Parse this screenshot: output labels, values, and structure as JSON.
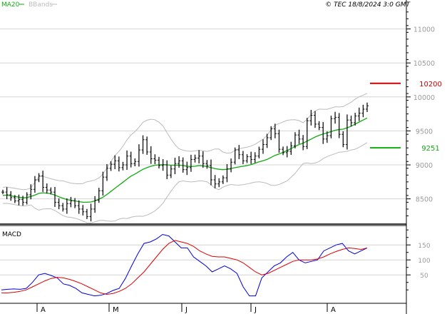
{
  "legend": {
    "ma_label": "MA20",
    "bb_label": "BBands",
    "ma_color": "#11aa11",
    "bb_color": "#bbbbbb"
  },
  "timestamp": "© TEC 18/8/2024 3:0 GMT",
  "colors": {
    "price": "#111111",
    "grid": "#d4d4d4",
    "resistance": "#cc0000",
    "support": "#11aa11",
    "macd": "#0000dd",
    "signal": "#dd0000"
  },
  "chart_data": [
    {
      "type": "ohlc",
      "title": "",
      "ylim": [
        8150,
        11300
      ],
      "y_ticks": [
        {
          "value": 8500,
          "label": "8500"
        },
        {
          "value": 9000,
          "label": "9000"
        },
        {
          "value": 9500,
          "label": "9500"
        },
        {
          "value": 10000,
          "label": "10000"
        },
        {
          "value": 10500,
          "label": "10500"
        },
        {
          "value": 11000,
          "label": "11000"
        }
      ],
      "closes": [
        8600,
        8560,
        8520,
        8470,
        8490,
        8450,
        8560,
        8640,
        8780,
        8840,
        8670,
        8630,
        8600,
        8450,
        8400,
        8350,
        8430,
        8470,
        8400,
        8350,
        8310,
        8240,
        8350,
        8480,
        8620,
        8820,
        8950,
        9010,
        9060,
        8960,
        9000,
        9130,
        9020,
        9050,
        9220,
        9370,
        9190,
        9090,
        9070,
        8990,
        9000,
        8850,
        8940,
        9020,
        9060,
        8930,
        8960,
        9080,
        9100,
        9130,
        9020,
        8990,
        8780,
        8720,
        8750,
        8810,
        8940,
        9040,
        9220,
        9150,
        9060,
        9120,
        9080,
        9130,
        9230,
        9300,
        9400,
        9530,
        9460,
        9230,
        9180,
        9200,
        9280,
        9440,
        9380,
        9270,
        9650,
        9730,
        9600,
        9550,
        9380,
        9430,
        9680,
        9700,
        9450,
        9300,
        9660,
        9620,
        9720,
        9760,
        9820,
        9870
      ],
      "ma20": [
        8550,
        8555,
        8545,
        8535,
        8525,
        8515,
        8520,
        8535,
        8555,
        8580,
        8590,
        8585,
        8575,
        8555,
        8530,
        8510,
        8490,
        8480,
        8470,
        8460,
        8450,
        8450,
        8455,
        8470,
        8495,
        8525,
        8565,
        8610,
        8655,
        8700,
        8745,
        8790,
        8835,
        8865,
        8900,
        8935,
        8960,
        8980,
        8995,
        9000,
        9005,
        9000,
        8995,
        8995,
        8995,
        8990,
        8980,
        8975,
        8980,
        8990,
        8985,
        8975,
        8960,
        8945,
        8935,
        8930,
        8935,
        8945,
        8960,
        8970,
        8980,
        8990,
        9005,
        9025,
        9045,
        9060,
        9080,
        9110,
        9140,
        9160,
        9185,
        9210,
        9240,
        9270,
        9300,
        9320,
        9350,
        9380,
        9410,
        9435,
        9455,
        9470,
        9490,
        9510,
        9520,
        9525,
        9545,
        9570,
        9600,
        9630,
        9660,
        9690
      ],
      "resistance": {
        "value": 10200,
        "label": "10200",
        "color": "#cc0000"
      },
      "support": {
        "value": 9251,
        "label": "9251",
        "color": "#11aa11"
      },
      "x_labels": [
        "A",
        "M",
        "J",
        "J",
        "A"
      ]
    },
    {
      "type": "line",
      "title": "MACD",
      "ylim": [
        -40,
        210
      ],
      "y_ticks": [
        {
          "value": 50,
          "label": "50"
        },
        {
          "value": 100,
          "label": "100"
        },
        {
          "value": 150,
          "label": "150"
        }
      ],
      "series": [
        {
          "name": "MACD",
          "color": "#0000dd",
          "values": [
            0,
            2,
            3,
            2,
            5,
            25,
            50,
            55,
            48,
            40,
            20,
            15,
            5,
            -10,
            -15,
            -20,
            -18,
            -12,
            -2,
            5,
            38,
            80,
            120,
            155,
            160,
            170,
            185,
            180,
            160,
            140,
            140,
            110,
            95,
            80,
            60,
            70,
            80,
            70,
            55,
            10,
            -20,
            -20,
            40,
            60,
            80,
            90,
            110,
            125,
            100,
            90,
            95,
            100,
            130,
            140,
            150,
            155,
            130,
            120,
            130,
            140
          ]
        },
        {
          "name": "Signal",
          "color": "#dd0000",
          "values": [
            -10,
            -10,
            -8,
            -5,
            0,
            10,
            20,
            30,
            38,
            42,
            40,
            35,
            28,
            20,
            10,
            0,
            -10,
            -15,
            -12,
            -5,
            5,
            20,
            40,
            60,
            85,
            110,
            135,
            155,
            165,
            160,
            155,
            145,
            130,
            120,
            112,
            110,
            110,
            105,
            100,
            90,
            75,
            60,
            50,
            55,
            65,
            75,
            85,
            95,
            100,
            100,
            100,
            103,
            110,
            120,
            128,
            135,
            140,
            138,
            135,
            140
          ]
        }
      ],
      "x_labels": [
        "A",
        "M",
        "J",
        "J",
        "A"
      ]
    }
  ]
}
